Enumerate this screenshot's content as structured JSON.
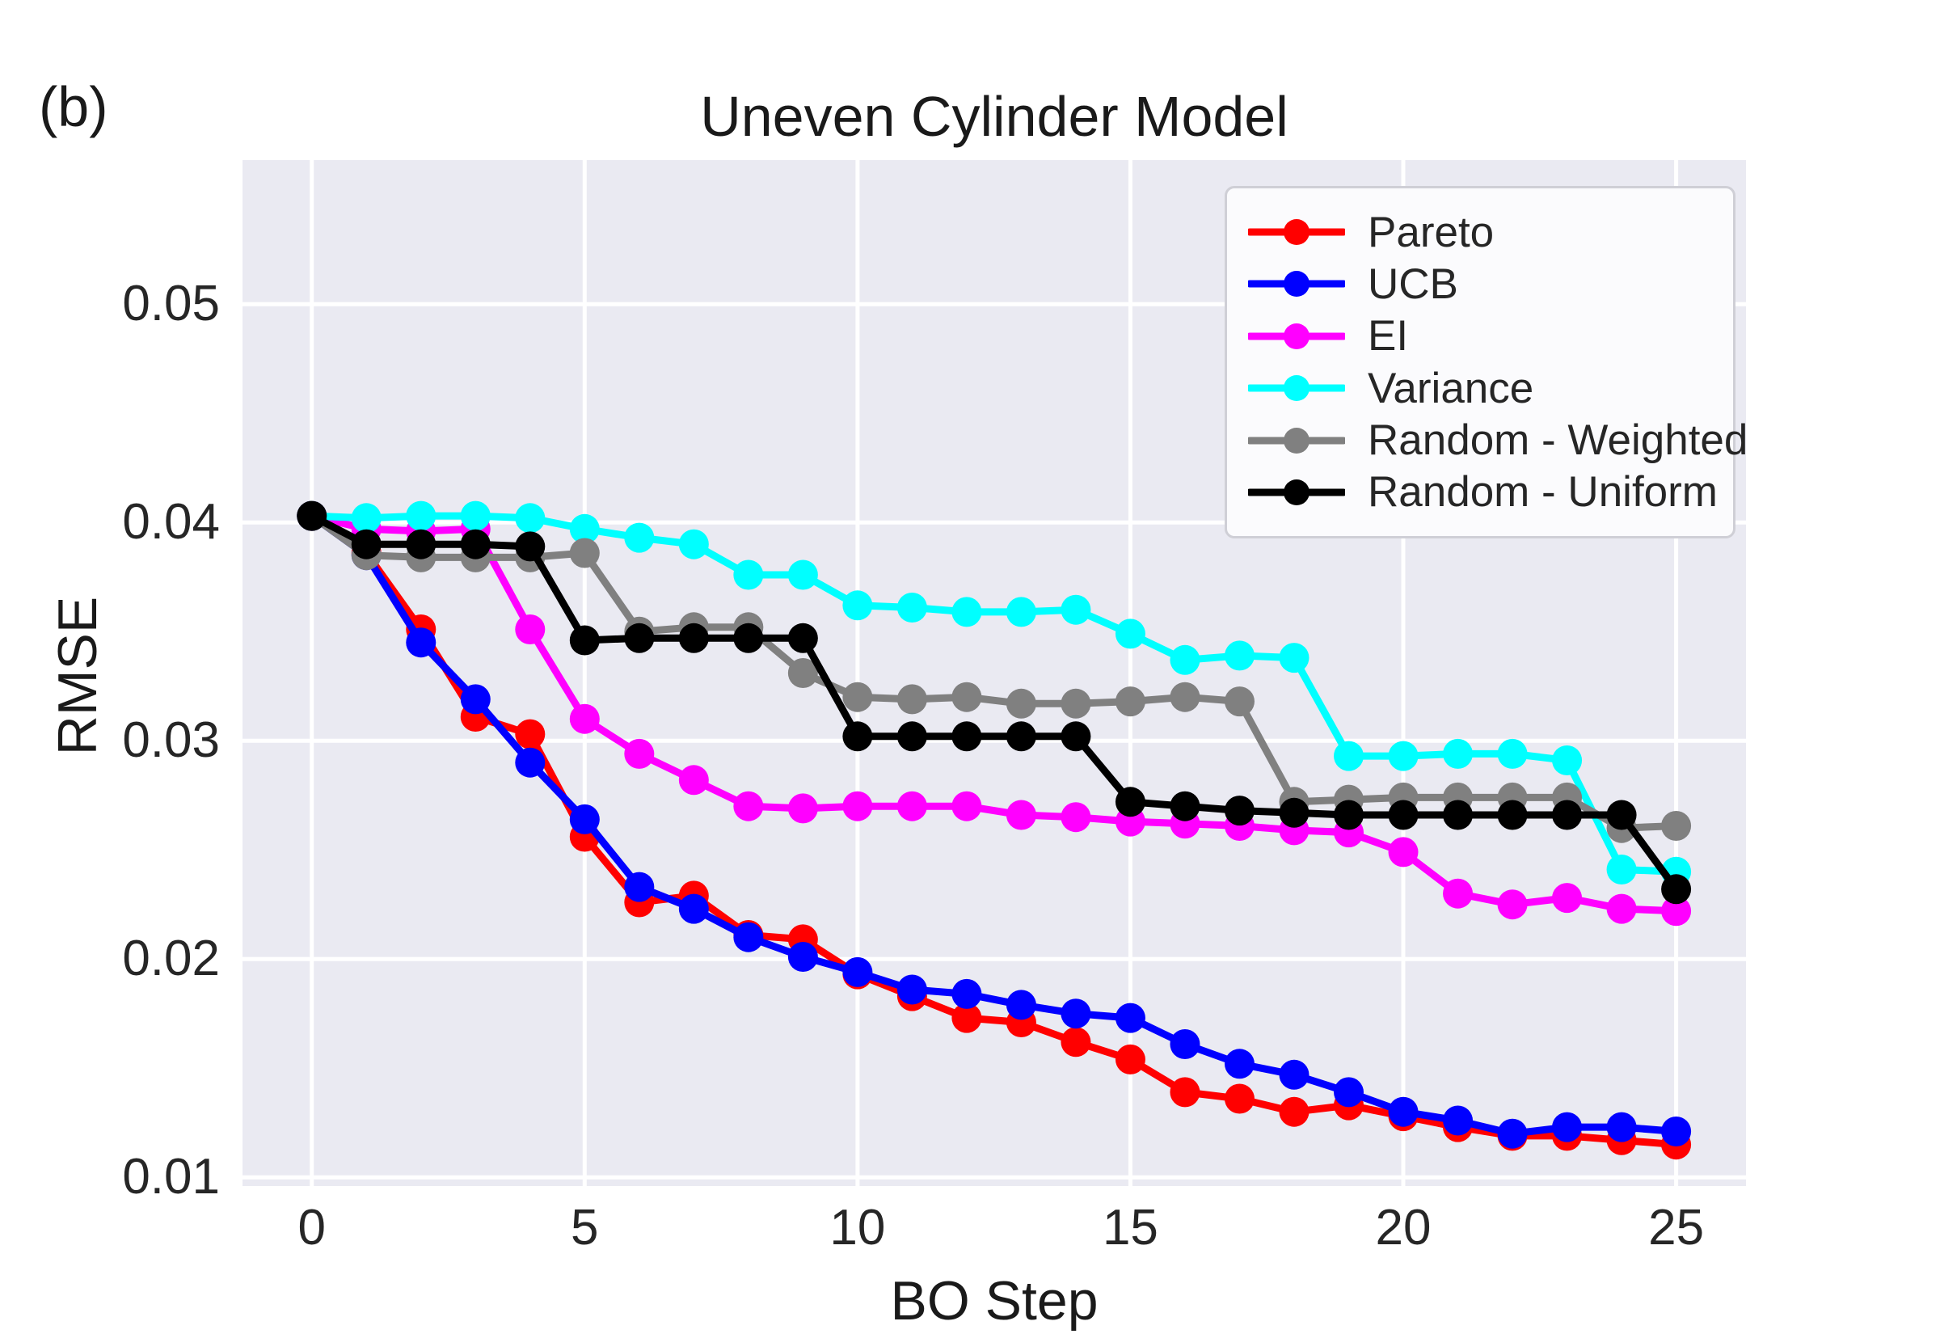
{
  "panel_label": "(b)",
  "colors": {
    "plot_bg": "#eaeaf2",
    "grid": "#ffffff",
    "text": "#262626",
    "legend_bg": "#fbfbfd",
    "legend_border": "#cfcfd6"
  },
  "chart_data": {
    "type": "line",
    "title": "Uneven Cylinder Model",
    "xlabel": "BO Step",
    "ylabel": "RMSE",
    "grid": true,
    "legend_position": "upper right",
    "x": [
      0,
      1,
      2,
      3,
      4,
      5,
      6,
      7,
      8,
      9,
      10,
      11,
      12,
      13,
      14,
      15,
      16,
      17,
      18,
      19,
      20,
      21,
      22,
      23,
      24,
      25
    ],
    "xticks": [
      0,
      5,
      10,
      15,
      20,
      25
    ],
    "yticks": [
      0.01,
      0.02,
      0.03,
      0.04,
      0.05
    ],
    "ytick_labels": [
      "0.01",
      "0.02",
      "0.03",
      "0.04",
      "0.05"
    ],
    "xlim": [
      -1.27,
      26.28
    ],
    "ylim": [
      0.0096,
      0.0566
    ],
    "series": [
      {
        "name": "Pareto",
        "color": "#ff0000",
        "values": [
          0.0403,
          0.0386,
          0.0351,
          0.0311,
          0.0303,
          0.0256,
          0.0226,
          0.0229,
          0.0211,
          0.0209,
          0.0193,
          0.0183,
          0.0173,
          0.0171,
          0.0162,
          0.0154,
          0.0139,
          0.0136,
          0.013,
          0.0133,
          0.0128,
          0.0123,
          0.0119,
          0.0119,
          0.0117,
          0.0115
        ]
      },
      {
        "name": "UCB",
        "color": "#0000ff",
        "values": [
          0.0403,
          0.0385,
          0.0345,
          0.0319,
          0.029,
          0.0264,
          0.0233,
          0.0223,
          0.021,
          0.0201,
          0.0194,
          0.0186,
          0.0184,
          0.0179,
          0.0175,
          0.0173,
          0.0161,
          0.0152,
          0.0147,
          0.0139,
          0.013,
          0.0126,
          0.012,
          0.0123,
          0.0123,
          0.0121
        ]
      },
      {
        "name": "EI",
        "color": "#ff00ff",
        "values": [
          0.0403,
          0.0397,
          0.0396,
          0.0397,
          0.0351,
          0.031,
          0.0294,
          0.0282,
          0.027,
          0.0269,
          0.027,
          0.027,
          0.027,
          0.0266,
          0.0265,
          0.0263,
          0.0262,
          0.0261,
          0.0259,
          0.0258,
          0.0249,
          0.023,
          0.0225,
          0.0228,
          0.0223,
          0.0222
        ]
      },
      {
        "name": "Variance",
        "color": "#00ffff",
        "values": [
          0.0403,
          0.0402,
          0.0403,
          0.0403,
          0.0402,
          0.0397,
          0.0393,
          0.039,
          0.0376,
          0.0376,
          0.0362,
          0.0361,
          0.0359,
          0.0359,
          0.036,
          0.0349,
          0.0337,
          0.0339,
          0.0338,
          0.0293,
          0.0293,
          0.0294,
          0.0294,
          0.0291,
          0.0241,
          0.024
        ]
      },
      {
        "name": "Random - Weighted",
        "color": "#808080",
        "values": [
          0.0403,
          0.0385,
          0.0384,
          0.0384,
          0.0384,
          0.0386,
          0.035,
          0.0352,
          0.0352,
          0.0331,
          0.032,
          0.0319,
          0.032,
          0.0317,
          0.0317,
          0.0318,
          0.032,
          0.0318,
          0.0272,
          0.0273,
          0.0274,
          0.0274,
          0.0274,
          0.0274,
          0.026,
          0.0261
        ]
      },
      {
        "name": "Random - Uniform",
        "color": "#000000",
        "values": [
          0.0403,
          0.039,
          0.039,
          0.039,
          0.0389,
          0.0346,
          0.0347,
          0.0347,
          0.0347,
          0.0347,
          0.0302,
          0.0302,
          0.0302,
          0.0302,
          0.0302,
          0.0272,
          0.027,
          0.0268,
          0.0267,
          0.0266,
          0.0266,
          0.0266,
          0.0266,
          0.0266,
          0.0266,
          0.0232
        ]
      }
    ]
  }
}
